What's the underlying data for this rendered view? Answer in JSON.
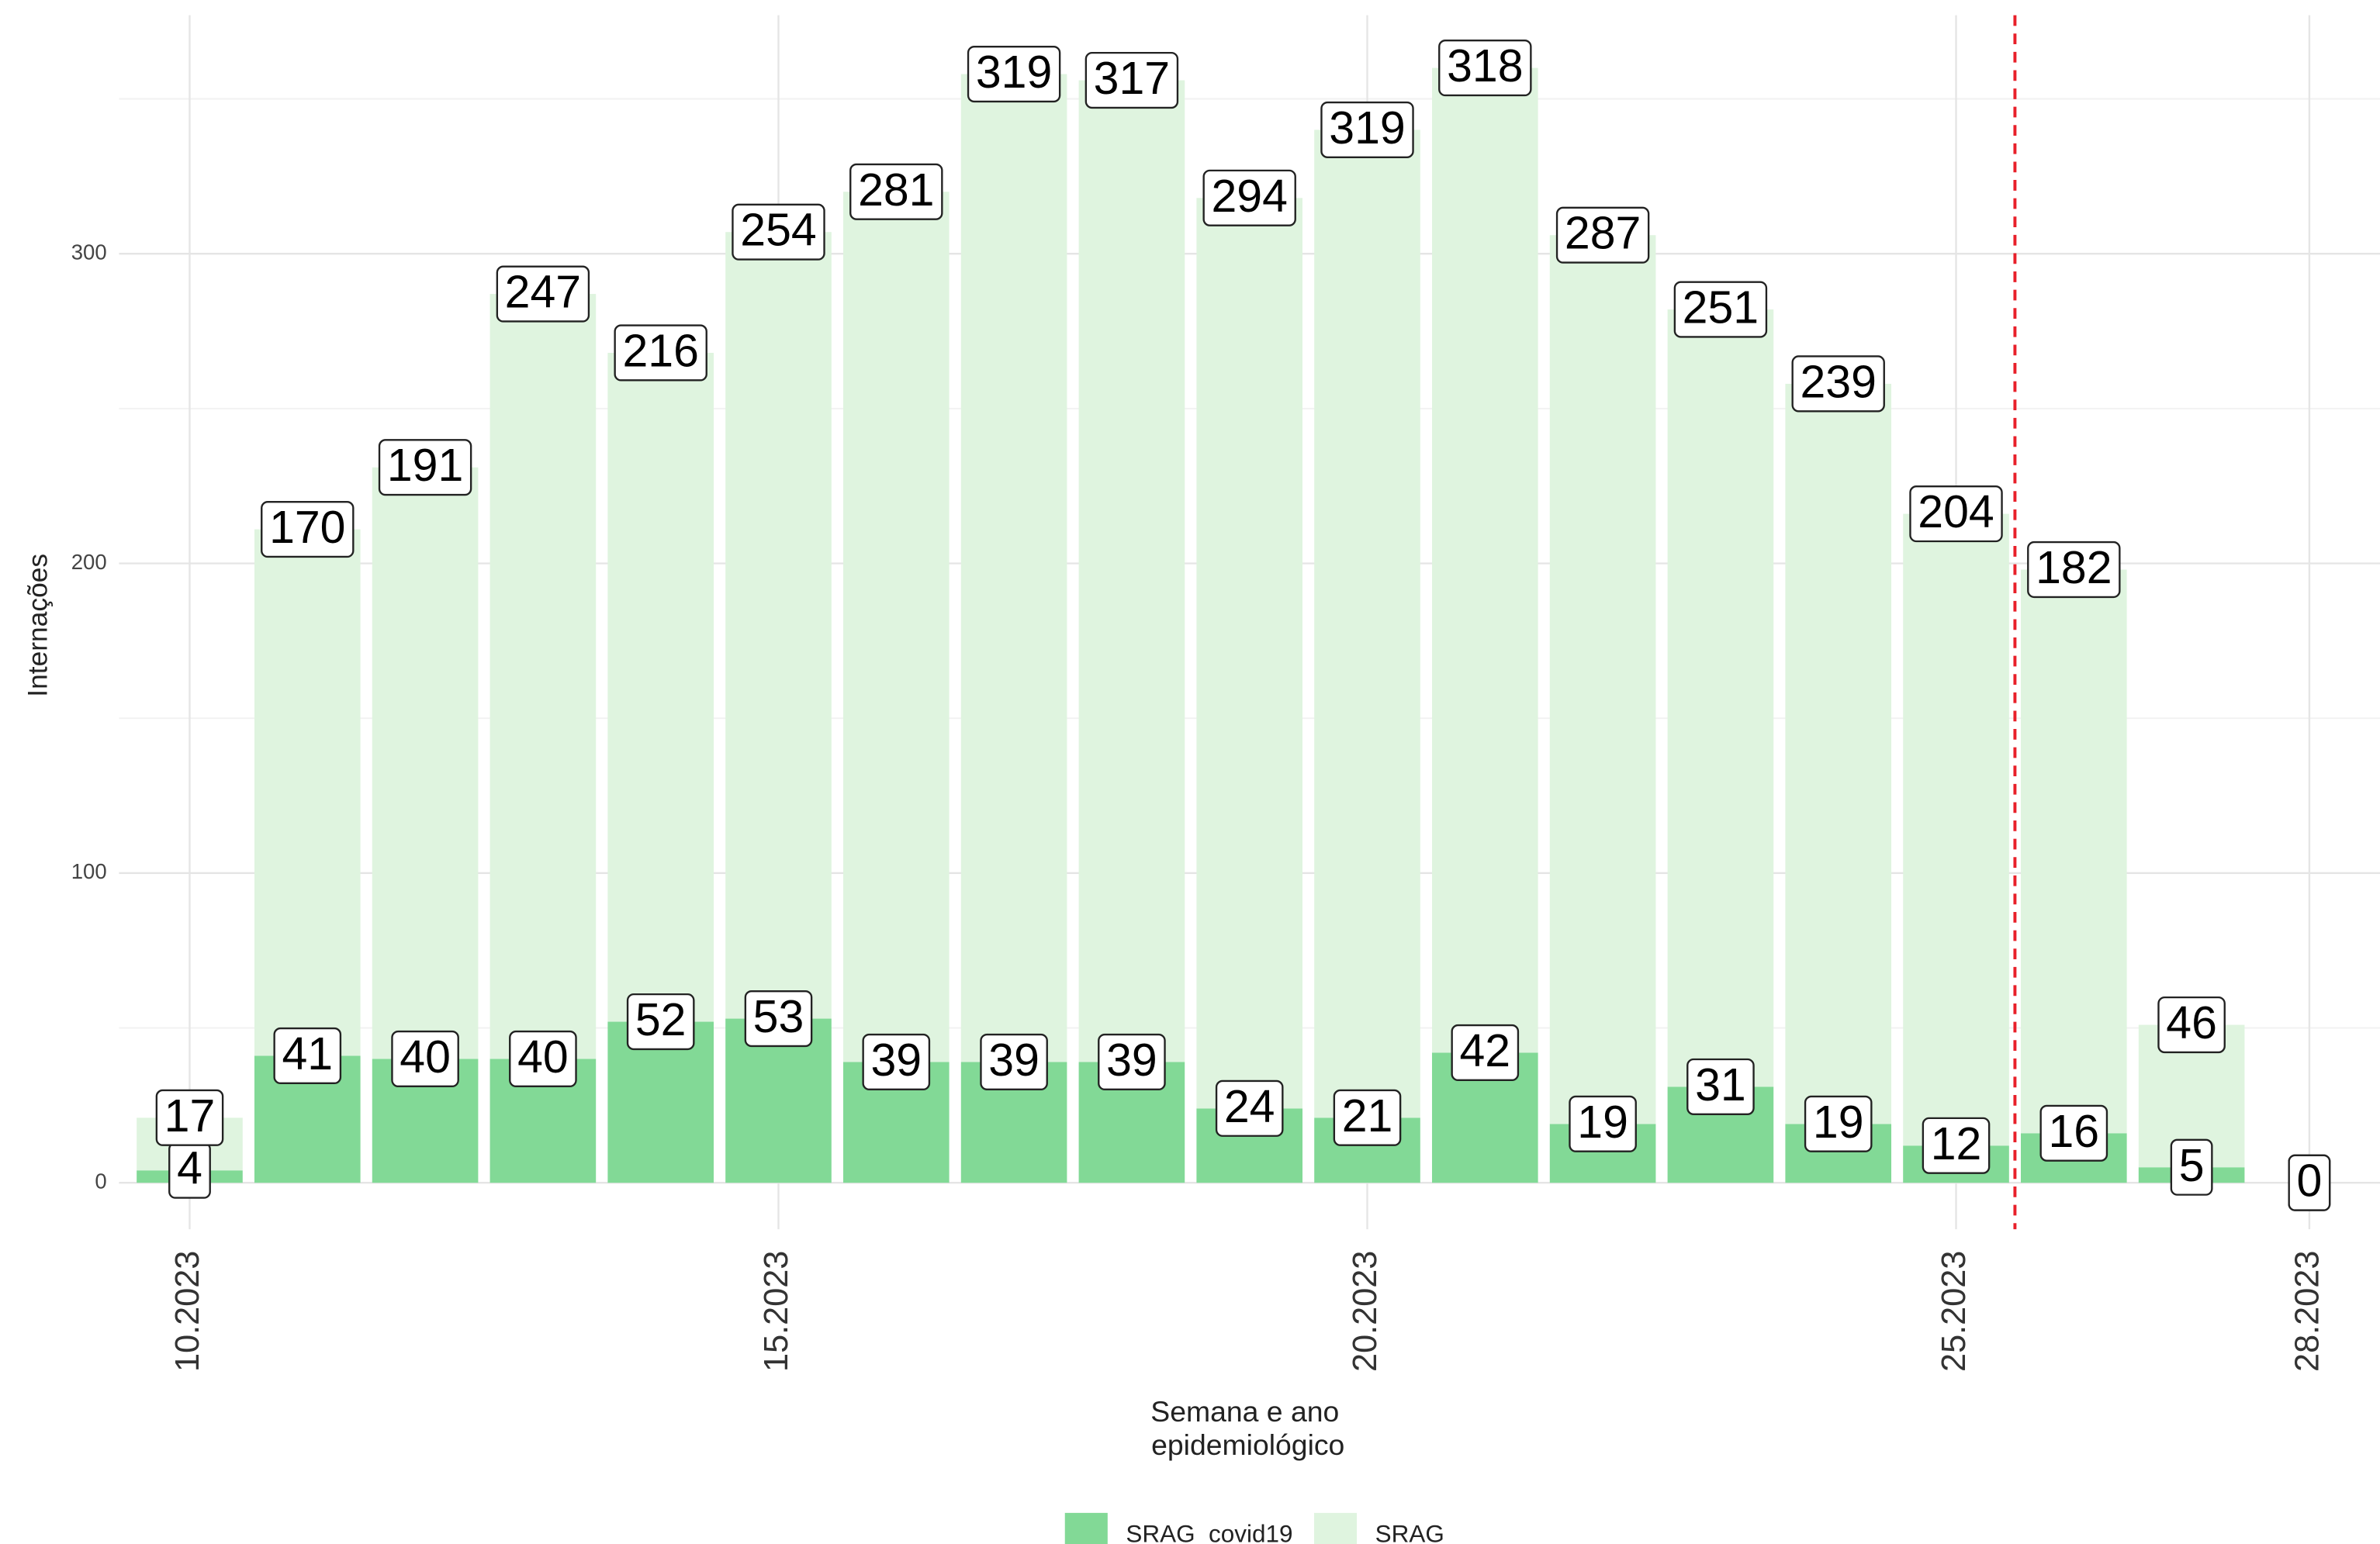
{
  "chart_data": {
    "type": "stacked_bar",
    "x_label": [
      "Semana e ano",
      "epidemiológico"
    ],
    "y_label": "Internações",
    "x": [
      10,
      11,
      12,
      13,
      14,
      15,
      16,
      17,
      18,
      19,
      20,
      21,
      22,
      23,
      24,
      25,
      26,
      27,
      28
    ],
    "series": [
      {
        "name": "SRAG_covid19",
        "color": "#82d996",
        "values": [
          4,
          41,
          40,
          40,
          52,
          53,
          39,
          39,
          39,
          24,
          21,
          42,
          19,
          31,
          19,
          12,
          16,
          5,
          0
        ]
      },
      {
        "name": "SRAG",
        "color": "#dff4df",
        "values": [
          17,
          170,
          191,
          247,
          216,
          254,
          281,
          319,
          317,
          294,
          319,
          318,
          287,
          251,
          239,
          204,
          182,
          46,
          0
        ]
      }
    ],
    "xlim": [
      9.4,
      28.6
    ],
    "xticks": [
      {
        "value": 10,
        "label": "10.2023"
      },
      {
        "value": 15,
        "label": "15.2023"
      },
      {
        "value": 20,
        "label": "20.2023"
      },
      {
        "value": 25,
        "label": "25.2023"
      },
      {
        "value": 28,
        "label": "28.2023"
      }
    ],
    "ylim": [
      -15,
      377
    ],
    "yticks": [
      0,
      100,
      200,
      300
    ],
    "y_minor_gridlines": [
      50,
      150,
      250,
      350
    ],
    "grid": true,
    "vline": {
      "x": 25.5,
      "color": "#e8202a"
    },
    "legend": "bottom"
  }
}
